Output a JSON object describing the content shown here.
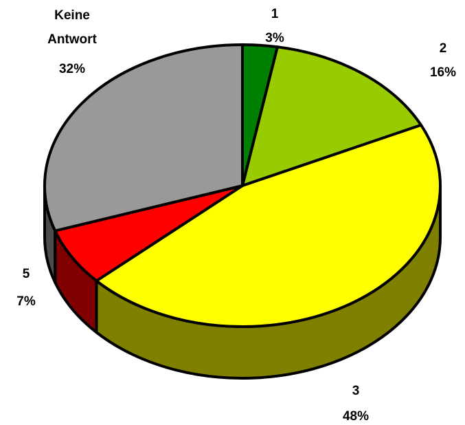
{
  "chart_data": {
    "type": "pie",
    "categories": [
      "1",
      "2",
      "3",
      "5",
      "Keine Antwort"
    ],
    "values": [
      3,
      16,
      48,
      7,
      32
    ],
    "value_labels": [
      "3%",
      "16%",
      "48%",
      "7%",
      "32%"
    ],
    "colors": [
      "#008000",
      "#99cc00",
      "#ffff00",
      "#ff0000",
      "#999999"
    ],
    "side_colors": [
      "#004000",
      "#4d6600",
      "#808000",
      "#800000",
      "#4d4d4d"
    ],
    "three_d": true
  }
}
